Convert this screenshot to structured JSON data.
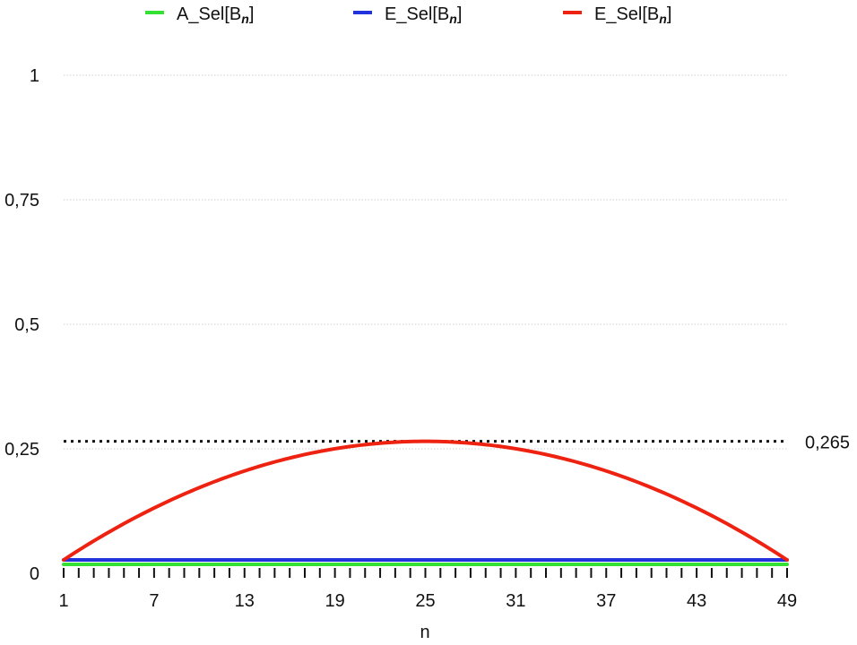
{
  "chart_data": {
    "type": "line",
    "title": "",
    "xlabel": "n",
    "ylabel": "",
    "x_ticks": [
      1,
      7,
      13,
      19,
      25,
      31,
      37,
      43,
      49
    ],
    "y_ticks": [
      {
        "value": 0,
        "label": "0"
      },
      {
        "value": 0.25,
        "label": "0,25"
      },
      {
        "value": 0.5,
        "label": "0,5"
      },
      {
        "value": 0.75,
        "label": "0,75"
      },
      {
        "value": 1,
        "label": "1"
      }
    ],
    "xlim": [
      1,
      49
    ],
    "ylim": [
      0,
      1
    ],
    "grid": true,
    "legend_position": "top",
    "reference_line": {
      "value": 0.265,
      "label": "0,265",
      "style": "dotted"
    },
    "series": [
      {
        "name": "A_Sel[B",
        "name_subscript": "n",
        "name_suffix": "]",
        "color": "#33e033",
        "shape": "constant",
        "value": 0.018,
        "x_start": 1,
        "x_end": 49
      },
      {
        "name": "E_Sel[B",
        "name_subscript": "n",
        "name_suffix": "]",
        "color": "#2233dd",
        "shape": "constant",
        "value": 0.027,
        "x_start": 1,
        "x_end": 49
      },
      {
        "name": "E_Sel[B",
        "name_subscript": "n",
        "name_suffix": "]",
        "color": "#ee2211",
        "shape": "parabola",
        "x": [
          1,
          7,
          13,
          19,
          25,
          31,
          37,
          43,
          49
        ],
        "y": [
          0.027,
          0.12,
          0.186,
          0.226,
          0.265,
          0.226,
          0.186,
          0.12,
          0.027
        ]
      }
    ]
  }
}
